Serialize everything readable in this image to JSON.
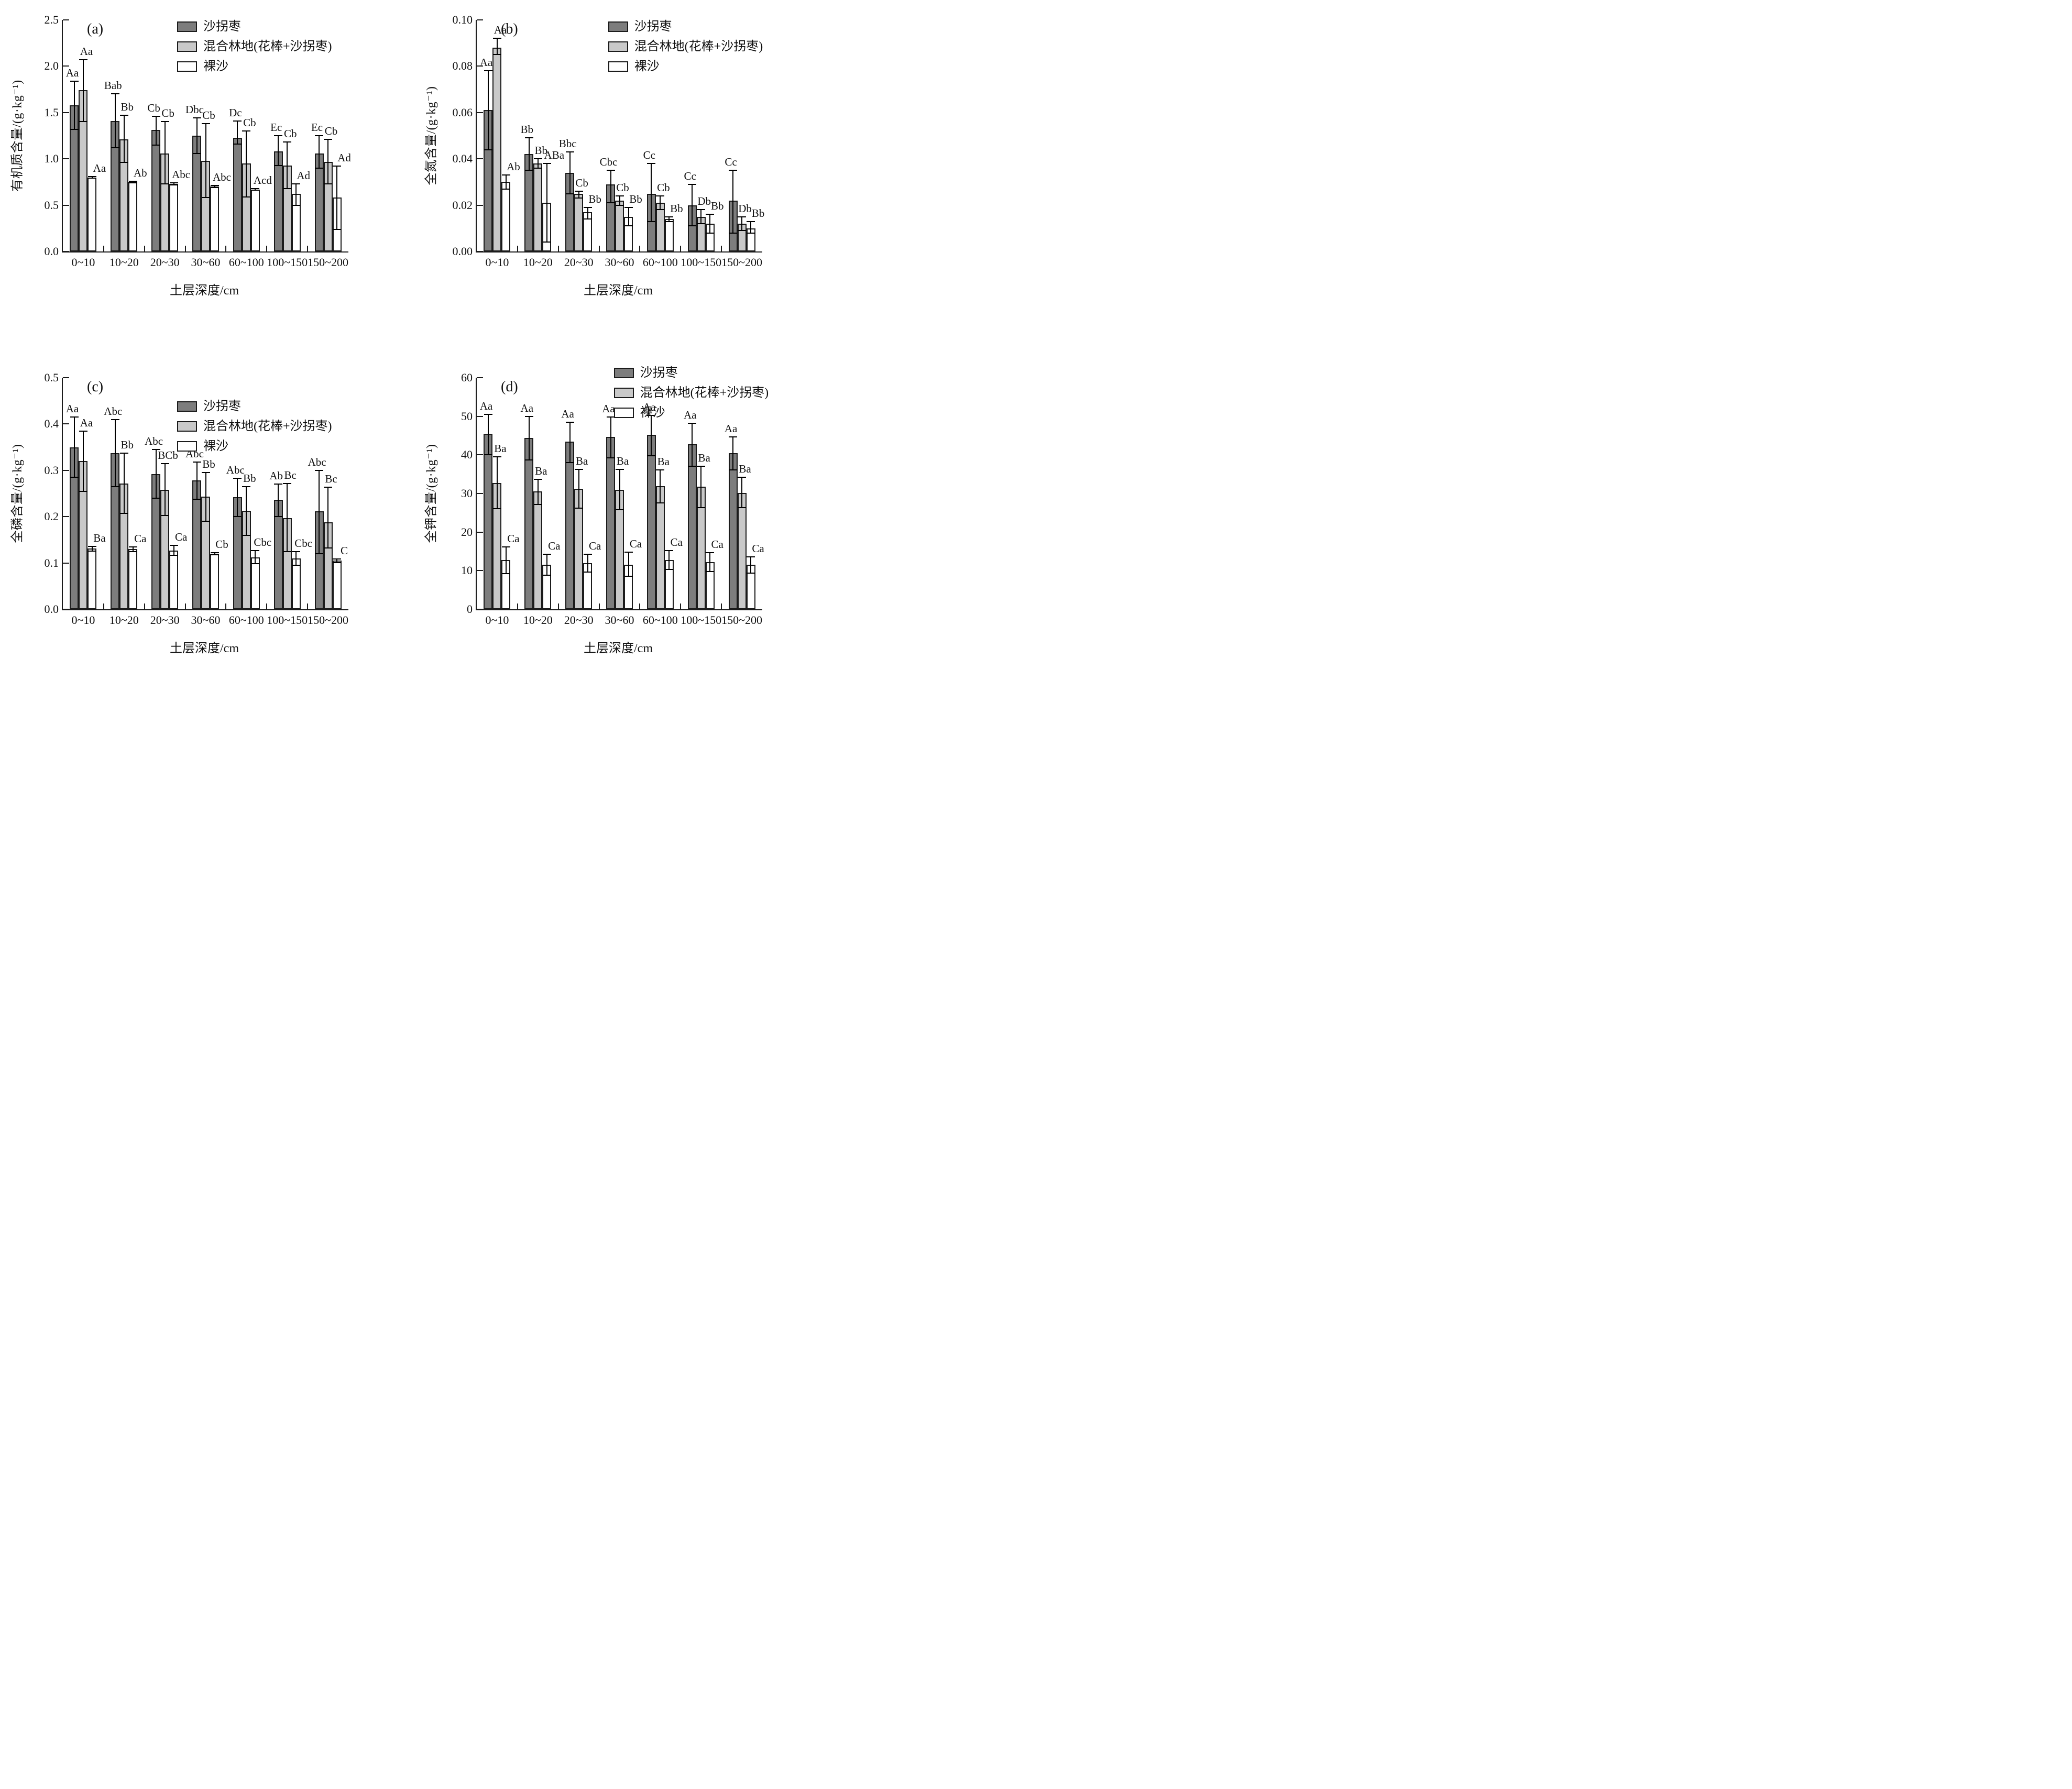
{
  "legend": {
    "items": [
      {
        "label": "沙拐枣",
        "color": "#7d7d7d"
      },
      {
        "label": "混合林地(花棒+沙拐枣)",
        "color": "#c9c9c9"
      },
      {
        "label": "裸沙",
        "color": "#ffffff"
      }
    ]
  },
  "colors": {
    "bar_border": "#1b1b1b",
    "axis": "#1b1b1b",
    "background": "#ffffff"
  },
  "chart_data": [
    {
      "type": "bar",
      "panel_label": "(a)",
      "ylabel": "有机质含量/(g·kg⁻¹)",
      "xlabel": "土层深度/cm",
      "ylim": [
        0,
        2.5
      ],
      "grid": false,
      "legend_position": "inside-top-right",
      "legend_pos": {
        "fx": 0.4,
        "dy": 0
      },
      "yticks": [
        {
          "v": 0.0,
          "t": "0.0"
        },
        {
          "v": 0.5,
          "t": "0.5"
        },
        {
          "v": 1.0,
          "t": "1.0"
        },
        {
          "v": 1.5,
          "t": "1.5"
        },
        {
          "v": 2.0,
          "t": "2.0"
        },
        {
          "v": 2.5,
          "t": "2.5"
        }
      ],
      "categories": [
        "0~10",
        "10~20",
        "20~30",
        "30~60",
        "60~100",
        "100~150",
        "150~200"
      ],
      "series": [
        {
          "name": "沙拐枣",
          "color": "#7d7d7d",
          "values": [
            1.58,
            1.41,
            1.31,
            1.25,
            1.23,
            1.08,
            1.06
          ],
          "err_low": [
            1.32,
            1.12,
            1.15,
            1.06,
            1.16,
            0.93,
            0.9
          ],
          "err_high": [
            1.84,
            1.7,
            1.46,
            1.44,
            1.41,
            1.25,
            1.25
          ],
          "sig_labels": [
            "Aa",
            "Bab",
            "Cb",
            "Dbc",
            "Dc",
            "Ec",
            "Ec"
          ]
        },
        {
          "name": "混合林地(花棒+沙拐枣)",
          "color": "#c9c9c9",
          "values": [
            1.74,
            1.21,
            1.06,
            0.98,
            0.95,
            0.93,
            0.97
          ],
          "err_low": [
            1.4,
            0.96,
            0.73,
            0.58,
            0.59,
            0.68,
            0.73
          ],
          "err_high": [
            2.07,
            1.47,
            1.4,
            1.38,
            1.3,
            1.18,
            1.21
          ],
          "sig_labels": [
            "Aa",
            "Bb",
            "Cb",
            "Cb",
            "Cb",
            "Cb",
            "Cb"
          ]
        },
        {
          "name": "裸沙",
          "color": "#ffffff",
          "values": [
            0.8,
            0.75,
            0.73,
            0.7,
            0.67,
            0.62,
            0.58
          ],
          "err_low": [
            0.79,
            0.74,
            0.72,
            0.69,
            0.66,
            0.5,
            0.24
          ],
          "err_high": [
            0.81,
            0.76,
            0.74,
            0.71,
            0.68,
            0.73,
            0.92
          ],
          "sig_labels": [
            "Aa",
            "Ab",
            "Abc",
            "Abc",
            "Acd",
            "Ad",
            "Ad"
          ]
        }
      ]
    },
    {
      "type": "bar",
      "panel_label": "(b)",
      "ylabel": "全氮含量/(g·kg⁻¹)",
      "xlabel": "土层深度/cm",
      "ylim": [
        0,
        0.1
      ],
      "grid": false,
      "legend_position": "inside-top-right",
      "legend_pos": {
        "fx": 0.46,
        "dy": 0
      },
      "yticks": [
        {
          "v": 0.0,
          "t": "0.00"
        },
        {
          "v": 0.02,
          "t": "0.02"
        },
        {
          "v": 0.04,
          "t": "0.04"
        },
        {
          "v": 0.06,
          "t": "0.06"
        },
        {
          "v": 0.08,
          "t": "0.08"
        },
        {
          "v": 0.1,
          "t": "0.10"
        }
      ],
      "categories": [
        "0~10",
        "10~20",
        "20~30",
        "30~60",
        "60~100",
        "100~150",
        "150~200"
      ],
      "series": [
        {
          "name": "沙拐枣",
          "color": "#7d7d7d",
          "values": [
            0.061,
            0.042,
            0.034,
            0.029,
            0.025,
            0.02,
            0.022
          ],
          "err_low": [
            0.044,
            0.035,
            0.025,
            0.021,
            0.013,
            0.011,
            0.008
          ],
          "err_high": [
            0.078,
            0.049,
            0.043,
            0.035,
            0.038,
            0.029,
            0.035
          ],
          "sig_labels": [
            "Aa",
            "Bb",
            "Bbc",
            "Cbc",
            "Cc",
            "Cc",
            "Cc"
          ]
        },
        {
          "name": "混合林地(花棒+沙拐枣)",
          "color": "#c9c9c9",
          "values": [
            0.088,
            0.038,
            0.025,
            0.022,
            0.021,
            0.015,
            0.012
          ],
          "err_low": [
            0.085,
            0.036,
            0.023,
            0.02,
            0.018,
            0.012,
            0.009
          ],
          "err_high": [
            0.092,
            0.04,
            0.026,
            0.024,
            0.024,
            0.018,
            0.015
          ],
          "sig_labels": [
            "Aa",
            "Bb",
            "Cb",
            "Cb",
            "Cb",
            "Db",
            "Db"
          ]
        },
        {
          "name": "裸沙",
          "color": "#ffffff",
          "values": [
            0.03,
            0.021,
            0.017,
            0.015,
            0.014,
            0.012,
            0.01
          ],
          "err_low": [
            0.027,
            0.004,
            0.014,
            0.011,
            0.013,
            0.008,
            0.008
          ],
          "err_high": [
            0.033,
            0.038,
            0.019,
            0.019,
            0.015,
            0.016,
            0.013
          ],
          "sig_labels": [
            "Ab",
            "ABa",
            "Bb",
            "Bb",
            "Bb",
            "Bb",
            "Bb"
          ]
        }
      ]
    },
    {
      "type": "bar",
      "panel_label": "(c)",
      "ylabel": "全磷含量/(g·kg⁻¹)",
      "xlabel": "土层深度/cm",
      "ylim": [
        0,
        0.5
      ],
      "grid": false,
      "legend_position": "inside-top-right",
      "legend_pos": {
        "fx": 0.4,
        "dy": 42
      },
      "yticks": [
        {
          "v": 0.0,
          "t": "0.0"
        },
        {
          "v": 0.1,
          "t": "0.1"
        },
        {
          "v": 0.2,
          "t": "0.2"
        },
        {
          "v": 0.3,
          "t": "0.3"
        },
        {
          "v": 0.4,
          "t": "0.4"
        },
        {
          "v": 0.5,
          "t": "0.5"
        }
      ],
      "categories": [
        "0~10",
        "10~20",
        "20~30",
        "30~60",
        "60~100",
        "100~150",
        "150~200"
      ],
      "series": [
        {
          "name": "沙拐枣",
          "color": "#7d7d7d",
          "values": [
            0.35,
            0.337,
            0.292,
            0.278,
            0.242,
            0.236,
            0.212
          ],
          "err_low": [
            0.285,
            0.265,
            0.24,
            0.238,
            0.2,
            0.2,
            0.12
          ],
          "err_high": [
            0.415,
            0.41,
            0.345,
            0.318,
            0.283,
            0.27,
            0.3
          ],
          "sig_labels": [
            "Aa",
            "Abc",
            "Abc",
            "Abc",
            "Abc",
            "Ab",
            "Abc"
          ]
        },
        {
          "name": "混合林地(花棒+沙拐枣)",
          "color": "#c9c9c9",
          "values": [
            0.32,
            0.272,
            0.258,
            0.243,
            0.213,
            0.197,
            0.188
          ],
          "err_low": [
            0.255,
            0.207,
            0.202,
            0.19,
            0.16,
            0.124,
            0.132
          ],
          "err_high": [
            0.385,
            0.337,
            0.315,
            0.295,
            0.265,
            0.272,
            0.264
          ],
          "sig_labels": [
            "Aa",
            "Bb",
            "BCb",
            "Bb",
            "Bb",
            "Bc",
            "Bc"
          ]
        },
        {
          "name": "裸沙",
          "color": "#ffffff",
          "values": [
            0.131,
            0.13,
            0.127,
            0.12,
            0.112,
            0.11,
            0.105
          ],
          "err_low": [
            0.126,
            0.125,
            0.117,
            0.118,
            0.098,
            0.095,
            0.101
          ],
          "err_high": [
            0.136,
            0.135,
            0.138,
            0.122,
            0.127,
            0.125,
            0.109
          ],
          "sig_labels": [
            "Ba",
            "Ca",
            "Ca",
            "Cb",
            "Cbc",
            "Cbc",
            "C"
          ]
        }
      ]
    },
    {
      "type": "bar",
      "panel_label": "(d)",
      "ylabel": "全钾含量/(g·kg⁻¹)",
      "xlabel": "土层深度/cm",
      "ylim": [
        0,
        60
      ],
      "grid": false,
      "legend_position": "above-top-right",
      "legend_pos": {
        "fx": 0.48,
        "dy": -22
      },
      "yticks": [
        {
          "v": 0,
          "t": "0"
        },
        {
          "v": 10,
          "t": "10"
        },
        {
          "v": 20,
          "t": "20"
        },
        {
          "v": 30,
          "t": "30"
        },
        {
          "v": 40,
          "t": "40"
        },
        {
          "v": 50,
          "t": "50"
        },
        {
          "v": 60,
          "t": "60"
        }
      ],
      "categories": [
        "0~10",
        "10~20",
        "20~30",
        "30~60",
        "60~100",
        "100~150",
        "150~200"
      ],
      "series": [
        {
          "name": "沙拐枣",
          "color": "#7d7d7d",
          "values": [
            45.5,
            44.4,
            43.5,
            44.6,
            45.2,
            42.8,
            40.4
          ],
          "err_low": [
            40.0,
            38.7,
            38.0,
            39.2,
            39.8,
            37.0,
            36.1
          ],
          "err_high": [
            50.5,
            50.0,
            48.5,
            49.8,
            50.2,
            48.2,
            44.7
          ],
          "sig_labels": [
            "Aa",
            "Aa",
            "Aa",
            "Aa",
            "Aa",
            "Aa",
            "Aa"
          ]
        },
        {
          "name": "混合林地(花棒+沙拐枣)",
          "color": "#c9c9c9",
          "values": [
            32.7,
            30.5,
            31.2,
            31.0,
            31.9,
            31.7,
            30.2
          ],
          "err_low": [
            26.0,
            27.2,
            26.2,
            25.8,
            27.6,
            26.4,
            26.3
          ],
          "err_high": [
            39.5,
            33.6,
            36.2,
            36.3,
            36.1,
            37.0,
            34.2
          ],
          "sig_labels": [
            "Ba",
            "Ba",
            "Ba",
            "Ba",
            "Ba",
            "Ba",
            "Ba"
          ]
        },
        {
          "name": "裸沙",
          "color": "#ffffff",
          "values": [
            12.7,
            11.6,
            11.9,
            11.5,
            12.7,
            12.2,
            11.5
          ],
          "err_low": [
            9.2,
            8.8,
            9.6,
            8.5,
            10.3,
            9.8,
            9.4
          ],
          "err_high": [
            16.1,
            14.2,
            14.3,
            14.8,
            15.2,
            14.6,
            13.6
          ],
          "sig_labels": [
            "Ca",
            "Ca",
            "Ca",
            "Ca",
            "Ca",
            "Ca",
            "Ca"
          ]
        }
      ]
    }
  ]
}
